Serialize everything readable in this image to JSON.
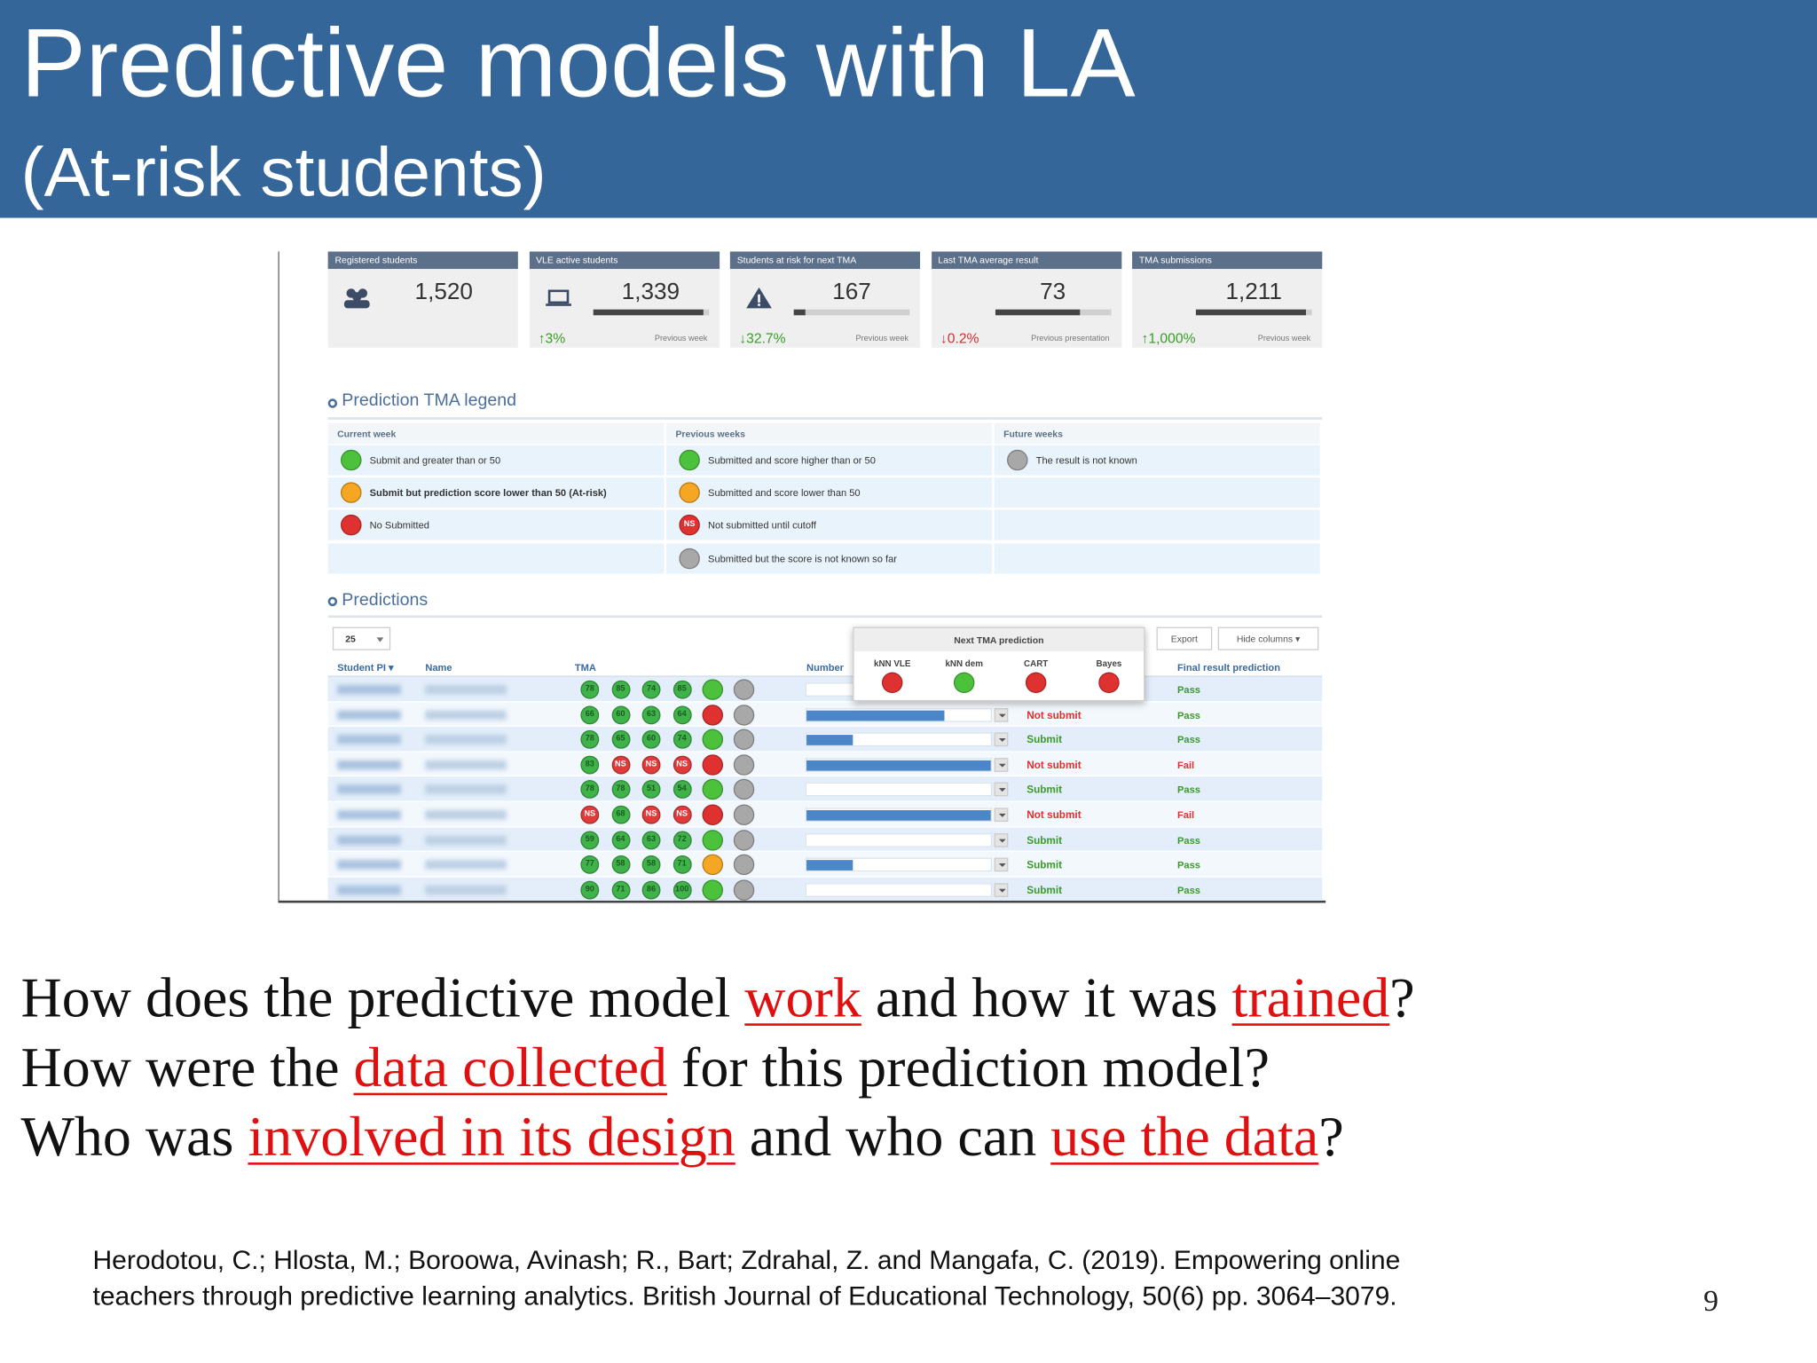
{
  "header": {
    "title": "Predictive models with LA",
    "subtitle": "(At-risk students)"
  },
  "dashboard": {
    "stats": [
      {
        "label": "Registered students",
        "value": "1,520"
      },
      {
        "label": "VLE active students",
        "value": "1,339",
        "bar": 0.95,
        "change": "↑3%",
        "change_color": "#3a9a2a",
        "period": "Previous week"
      },
      {
        "label": "Students at risk for next TMA",
        "value": "167",
        "bar": 0.1,
        "change": "↓32.7%",
        "change_color": "#3a9a2a",
        "period": "Previous week"
      },
      {
        "label": "Last TMA average result",
        "value": "73",
        "bar": 0.73,
        "change": "↓0.2%",
        "change_color": "#d03030",
        "period": "Previous presentation"
      },
      {
        "label": "TMA submissions",
        "value": "1,211",
        "bar": 0.95,
        "change": "↑1,000%",
        "change_color": "#3a9a2a",
        "period": "Previous week"
      }
    ],
    "legend": {
      "title": "Prediction TMA legend",
      "columns": [
        {
          "header": "Current week",
          "items": [
            {
              "color": "#4cc23c",
              "text": "Submit and greater than or 50"
            },
            {
              "color": "#f5a623",
              "text": "Submit but prediction score lower than 50 (At-risk)",
              "bold": true
            },
            {
              "color": "#e03131",
              "text": "No Submitted"
            }
          ]
        },
        {
          "header": "Previous weeks",
          "items": [
            {
              "color": "#4cc23c",
              "text": "Submitted and score higher than or 50"
            },
            {
              "color": "#f5a623",
              "text": "Submitted and score lower than 50"
            },
            {
              "color": "#e03131",
              "label": "NS",
              "text": "Not submitted until cutoff"
            },
            {
              "color": "#a8a8a8",
              "text": "Submitted but the score is not known so far"
            }
          ]
        },
        {
          "header": "Future weeks",
          "items": [
            {
              "color": "#a8a8a8",
              "text": "The result is not known"
            }
          ]
        }
      ]
    },
    "predictions": {
      "title": "Predictions",
      "page_size": "25",
      "buttons": [
        "Export",
        "Hide columns ▾"
      ],
      "columns": [
        "Student PI ▾",
        "Name",
        "TMA",
        "Number",
        "Final result prediction"
      ],
      "popup": {
        "title": "Next TMA prediction",
        "models": [
          "kNN VLE",
          "kNN dem",
          "CART",
          "Bayes"
        ],
        "colors": [
          "#e03131",
          "#4cc23c",
          "#e03131",
          "#e03131"
        ]
      },
      "rows": [
        {
          "tma": [
            "78",
            "85",
            "74",
            "85"
          ],
          "status": [
            "#4cc23c",
            "#a8a8a8"
          ],
          "final": "Pass",
          "final_color": "#3a9a2a"
        },
        {
          "tma": [
            "66",
            "60",
            "63",
            "64"
          ],
          "status": [
            "#e03131",
            "#a8a8a8"
          ],
          "bar": 0.75,
          "prediction": "Not submit",
          "prediction_color": "#e03030",
          "final": "Pass",
          "final_color": "#3a9a2a"
        },
        {
          "tma": [
            "78",
            "65",
            "60",
            "74"
          ],
          "status": [
            "#4cc23c",
            "#a8a8a8"
          ],
          "bar": 0.25,
          "prediction": "Submit",
          "prediction_color": "#3a9a2a",
          "final": "Pass",
          "final_color": "#3a9a2a"
        },
        {
          "tma": [
            "83",
            "NS",
            "NS",
            "NS"
          ],
          "status": [
            "#e03131",
            "#a8a8a8"
          ],
          "bar": 1.0,
          "prediction": "Not submit",
          "prediction_color": "#e03030",
          "final": "Fail",
          "final_color": "#e03030"
        },
        {
          "tma": [
            "78",
            "78",
            "51",
            "54"
          ],
          "status": [
            "#4cc23c",
            "#a8a8a8"
          ],
          "prediction": "Submit",
          "prediction_color": "#3a9a2a",
          "final": "Pass",
          "final_color": "#3a9a2a"
        },
        {
          "tma": [
            "NS",
            "68",
            "NS",
            "NS"
          ],
          "status": [
            "#e03131",
            "#a8a8a8"
          ],
          "bar": 1.0,
          "prediction": "Not submit",
          "prediction_color": "#e03030",
          "final": "Fail",
          "final_color": "#e03030"
        },
        {
          "tma": [
            "59",
            "64",
            "63",
            "72"
          ],
          "status": [
            "#4cc23c",
            "#a8a8a8"
          ],
          "prediction": "Submit",
          "prediction_color": "#3a9a2a",
          "final": "Pass",
          "final_color": "#3a9a2a"
        },
        {
          "tma": [
            "77",
            "58",
            "58",
            "71"
          ],
          "status": [
            "#f5a623",
            "#a8a8a8"
          ],
          "bar": 0.25,
          "prediction": "Submit",
          "prediction_color": "#3a9a2a",
          "final": "Pass",
          "final_color": "#3a9a2a"
        },
        {
          "tma": [
            "90",
            "71",
            "86",
            "100"
          ],
          "status": [
            "#4cc23c",
            "#a8a8a8"
          ],
          "prediction": "Submit",
          "prediction_color": "#3a9a2a",
          "final": "Pass",
          "final_color": "#3a9a2a"
        }
      ]
    }
  },
  "questions": [
    [
      {
        "text": "How does the predictive model ",
        "highlight": false
      },
      {
        "text": "work",
        "highlight": true
      },
      {
        "text": " and how it was ",
        "highlight": false
      },
      {
        "text": "trained",
        "highlight": true
      },
      {
        "text": "?",
        "highlight": false
      }
    ],
    [
      {
        "text": "How were the ",
        "highlight": false
      },
      {
        "text": "data collected",
        "highlight": true
      },
      {
        "text": " for this prediction model?",
        "highlight": false
      }
    ],
    [
      {
        "text": "Who was ",
        "highlight": false
      },
      {
        "text": "involved in its design",
        "highlight": true
      },
      {
        "text": " and who can ",
        "highlight": false
      },
      {
        "text": "use the data",
        "highlight": true
      },
      {
        "text": "?",
        "highlight": false
      }
    ]
  ],
  "citation": [
    "Herodotou, C.; Hlosta, M.; Boroowa, Avinash; R., Bart; Zdrahal, Z. and Mangafa, C. (2019). Empowering online",
    "teachers through predictive learning analytics. British Journal of Educational Technology, 50(6) pp. 3064–3079."
  ],
  "page_number": "9"
}
